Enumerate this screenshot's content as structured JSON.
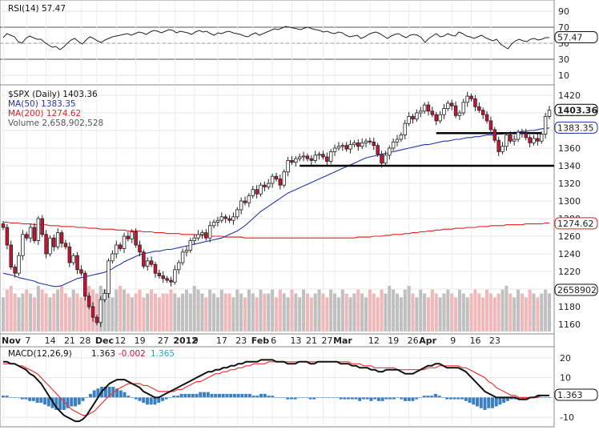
{
  "chart_data": [
    {
      "type": "line",
      "panel": "rsi",
      "legend": "RSI(14) 57.47",
      "last_value_label": "57.47",
      "ylim": [
        0,
        100
      ],
      "y_ticks": [
        10,
        30,
        50,
        70,
        90
      ],
      "guide_levels": [
        30,
        70
      ],
      "values": [
        57,
        62,
        60,
        58,
        52,
        50,
        56,
        59,
        57,
        55,
        55,
        51,
        48,
        45,
        46,
        42,
        45,
        50,
        54,
        56,
        52,
        49,
        54,
        58,
        56,
        53,
        51,
        54,
        56,
        58,
        59,
        60,
        61,
        62,
        60,
        62,
        64,
        63,
        61,
        64,
        66,
        65,
        63,
        65,
        67,
        66,
        63,
        65,
        64,
        63,
        61,
        64,
        66,
        64,
        65,
        62,
        60,
        63,
        62,
        64,
        65,
        63,
        62,
        61,
        59,
        58,
        61,
        63,
        60,
        62,
        64,
        66,
        68,
        67,
        69,
        71,
        70,
        69,
        68,
        67,
        69,
        70,
        68,
        67,
        66,
        64,
        65,
        63,
        62,
        64,
        63,
        60,
        58,
        59,
        60,
        56,
        58,
        61,
        63,
        64,
        62,
        59,
        56,
        59,
        61,
        62,
        59,
        57,
        60,
        61,
        60,
        57,
        51,
        56,
        59,
        62,
        58,
        59,
        62,
        60,
        59,
        64,
        62,
        59,
        58,
        56,
        58,
        60,
        57,
        55,
        53,
        55,
        49,
        46,
        43,
        49,
        53,
        55,
        53,
        52,
        55,
        56,
        54,
        55,
        57,
        57
      ]
    },
    {
      "type": "candlestick",
      "panel": "price",
      "legend": [
        "$SPX (Daily) 1403.36",
        "MA(50) 1383.35",
        "MA(200) 1274.62",
        "Volume 2,658,902,528"
      ],
      "last_value_labels": [
        "1403.36",
        "1383.35",
        "1274.62",
        "2658902"
      ],
      "ylim": [
        1150,
        1430
      ],
      "y_ticks": [
        1160,
        1180,
        1200,
        1220,
        1240,
        1260,
        1280,
        1300,
        1320,
        1340,
        1360,
        1380,
        1400,
        1420
      ],
      "x_tick_labels": [
        "Nov",
        "7",
        "14",
        "21",
        "28",
        "Dec",
        "12",
        "19",
        "27",
        "2012",
        "9",
        "17",
        "23",
        "Feb",
        "6",
        "13",
        "21",
        "27",
        "Mar",
        "12",
        "19",
        "26",
        "Apr",
        "9",
        "16",
        "23"
      ],
      "colors": {
        "up": "#ffffff",
        "down": "#cc1133",
        "ma50": "#2233aa",
        "ma200": "#dd2222",
        "volume_up": "#c0c0c0",
        "volume_down": "#f0b8b8"
      },
      "horizontal_levels": [
        1340,
        1377
      ],
      "close": [
        1270,
        1250,
        1225,
        1218,
        1238,
        1262,
        1258,
        1270,
        1255,
        1280,
        1262,
        1240,
        1258,
        1248,
        1264,
        1252,
        1248,
        1230,
        1238,
        1222,
        1218,
        1192,
        1180,
        1168,
        1162,
        1188,
        1195,
        1232,
        1240,
        1250,
        1246,
        1260,
        1257,
        1265,
        1250,
        1242,
        1226,
        1232,
        1228,
        1218,
        1215,
        1212,
        1210,
        1208,
        1222,
        1230,
        1242,
        1244,
        1255,
        1258,
        1262,
        1264,
        1258,
        1272,
        1276,
        1278,
        1282,
        1280,
        1278,
        1282,
        1290,
        1300,
        1298,
        1306,
        1313,
        1308,
        1318,
        1316,
        1320,
        1328,
        1325,
        1318,
        1333,
        1346,
        1344,
        1348,
        1350,
        1351,
        1348,
        1346,
        1352,
        1353,
        1350,
        1345,
        1356,
        1360,
        1362,
        1363,
        1359,
        1364,
        1366,
        1362,
        1366,
        1368,
        1367,
        1363,
        1353,
        1343,
        1352,
        1360,
        1367,
        1370,
        1375,
        1388,
        1396,
        1393,
        1400,
        1402,
        1409,
        1402,
        1398,
        1391,
        1398,
        1405,
        1411,
        1408,
        1397,
        1400,
        1412,
        1419,
        1416,
        1407,
        1403,
        1398,
        1391,
        1381,
        1369,
        1356,
        1362,
        1375,
        1368,
        1370,
        1378,
        1377,
        1372,
        1366,
        1371,
        1368,
        1376,
        1396,
        1403
      ],
      "ma50": [
        1218,
        1217,
        1216,
        1215,
        1213,
        1212,
        1211,
        1210,
        1209,
        1207,
        1206,
        1205,
        1204,
        1203,
        1203,
        1204,
        1206,
        1208,
        1210,
        1212,
        1213,
        1214,
        1215,
        1216,
        1217,
        1218,
        1219,
        1221,
        1223,
        1226,
        1228,
        1231,
        1233,
        1235,
        1237,
        1239,
        1240,
        1241,
        1242,
        1243,
        1243,
        1244,
        1245,
        1245,
        1246,
        1247,
        1248,
        1249,
        1250,
        1251,
        1252,
        1253,
        1254,
        1255,
        1256,
        1257,
        1258,
        1260,
        1262,
        1264,
        1266,
        1269,
        1272,
        1276,
        1280,
        1284,
        1288,
        1291,
        1294,
        1297,
        1300,
        1303,
        1306,
        1309,
        1311,
        1313,
        1315,
        1317,
        1319,
        1321,
        1323,
        1325,
        1327,
        1329,
        1331,
        1333,
        1335,
        1337,
        1339,
        1341,
        1343,
        1345,
        1347,
        1349,
        1350,
        1351,
        1352,
        1353,
        1354,
        1355,
        1356,
        1357,
        1358,
        1359,
        1360,
        1361,
        1362,
        1363,
        1364,
        1364,
        1365,
        1366,
        1367,
        1368,
        1368,
        1369,
        1370,
        1370,
        1371,
        1372,
        1372,
        1373,
        1373,
        1374,
        1375,
        1375,
        1375,
        1376,
        1376,
        1377,
        1377,
        1378,
        1378,
        1379,
        1379,
        1380,
        1380,
        1381,
        1382,
        1382,
        1383
      ],
      "ma200": [
        1276,
        1276,
        1275,
        1275,
        1275,
        1274,
        1274,
        1274,
        1273,
        1273,
        1273,
        1273,
        1272,
        1272,
        1272,
        1271,
        1271,
        1271,
        1271,
        1270,
        1270,
        1270,
        1269,
        1269,
        1269,
        1268,
        1268,
        1268,
        1268,
        1267,
        1267,
        1267,
        1266,
        1266,
        1266,
        1266,
        1265,
        1265,
        1265,
        1264,
        1264,
        1264,
        1263,
        1263,
        1263,
        1263,
        1262,
        1262,
        1262,
        1262,
        1261,
        1261,
        1261,
        1260,
        1260,
        1260,
        1260,
        1259,
        1259,
        1259,
        1259,
        1259,
        1258,
        1258,
        1258,
        1258,
        1258,
        1258,
        1258,
        1258,
        1258,
        1258,
        1258,
        1258,
        1258,
        1258,
        1258,
        1258,
        1258,
        1258,
        1258,
        1258,
        1258,
        1258,
        1258,
        1258,
        1258,
        1258,
        1258,
        1258,
        1258,
        1259,
        1259,
        1259,
        1259,
        1260,
        1260,
        1260,
        1261,
        1261,
        1262,
        1262,
        1262,
        1263,
        1263,
        1264,
        1264,
        1265,
        1265,
        1266,
        1266,
        1267,
        1267,
        1268,
        1268,
        1268,
        1269,
        1269,
        1269,
        1270,
        1270,
        1270,
        1271,
        1271,
        1271,
        1272,
        1272,
        1272,
        1272,
        1273,
        1273,
        1273,
        1273,
        1273,
        1274,
        1274,
        1274,
        1274,
        1274,
        1275,
        1275
      ],
      "volume_scale": [
        0.45,
        0.55,
        0.6,
        0.5,
        0.45,
        0.5,
        0.55,
        0.5,
        0.45,
        0.6,
        0.55,
        0.5,
        0.45,
        0.5,
        0.55,
        0.6,
        0.5,
        0.45,
        0.55,
        0.5,
        0.45,
        0.55,
        0.6,
        0.55,
        0.5,
        0.6,
        0.55,
        0.5,
        0.45,
        0.55,
        0.6,
        0.55,
        0.5,
        0.45,
        0.5,
        0.55,
        0.45,
        0.5,
        0.55,
        0.5,
        0.45,
        0.5,
        0.5,
        0.55,
        0.5,
        0.45,
        0.5,
        0.55,
        0.5,
        0.6,
        0.55,
        0.5,
        0.45,
        0.55,
        0.5,
        0.45,
        0.55,
        0.5,
        0.5,
        0.45,
        0.55,
        0.5,
        0.45,
        0.55,
        0.5,
        0.45,
        0.55,
        0.5,
        0.5,
        0.55,
        0.45,
        0.55,
        0.5,
        0.45,
        0.55,
        0.5,
        0.45,
        0.55,
        0.5,
        0.45,
        0.5,
        0.55,
        0.5,
        0.45,
        0.55,
        0.5,
        0.45,
        0.55,
        0.5,
        0.45,
        0.5,
        0.55,
        0.5,
        0.45,
        0.55,
        0.5,
        0.45,
        0.55,
        0.5,
        0.6,
        0.55,
        0.5,
        0.45,
        0.55,
        0.6,
        0.5,
        0.45,
        0.55,
        0.5,
        0.45,
        0.55,
        0.5,
        0.45,
        0.5,
        0.55,
        0.5,
        0.45,
        0.55,
        0.5,
        0.45,
        0.5,
        0.55,
        0.5,
        0.45,
        0.55,
        0.5,
        0.45,
        0.5,
        0.55,
        0.6,
        0.5,
        0.45,
        0.55,
        0.5,
        0.45,
        0.55,
        0.5,
        0.45,
        0.5,
        0.55,
        0.5
      ]
    },
    {
      "type": "line",
      "panel": "macd",
      "legend": "MACD(12,26,9) 1.363, -0.002, 1.365",
      "legend_parts": {
        "name": "MACD(12,26,9)",
        "macd": "1.363",
        "hist": "-0.002",
        "signal": "1.365"
      },
      "last_value_label": "1.363",
      "ylim": [
        -14,
        24
      ],
      "y_ticks": [
        -10,
        0,
        10,
        20
      ],
      "colors": {
        "macd": "#111111",
        "signal": "#ee3333",
        "histogram": "#3a7fc0",
        "signal_text": "#2aa0c0",
        "hist_text": "#cc1133"
      },
      "macd": [
        18,
        18,
        17,
        17,
        16,
        15,
        14,
        12,
        11,
        9,
        7,
        4,
        1,
        -2,
        -5,
        -7,
        -9,
        -10,
        -11,
        -12,
        -12,
        -11,
        -9,
        -6,
        -3,
        0,
        3,
        5,
        7,
        8,
        9,
        9,
        9,
        8,
        7,
        6,
        5,
        3,
        2,
        1,
        0,
        0,
        1,
        2,
        3,
        4,
        5,
        6,
        7,
        8,
        9,
        10,
        11,
        12,
        13,
        13,
        14,
        14,
        15,
        15,
        16,
        16,
        17,
        17,
        18,
        18,
        18,
        18,
        19,
        19,
        19,
        19,
        18,
        18,
        18,
        17,
        17,
        17,
        18,
        18,
        18,
        17,
        17,
        18,
        18,
        18,
        18,
        18,
        18,
        17,
        17,
        17,
        16,
        16,
        15,
        15,
        15,
        14,
        14,
        13,
        13,
        14,
        14,
        14,
        14,
        13,
        12,
        12,
        12,
        13,
        14,
        15,
        16,
        16,
        17,
        17,
        16,
        15,
        15,
        15,
        15,
        14,
        13,
        11,
        9,
        7,
        5,
        3,
        2,
        1,
        0,
        0,
        0,
        0,
        0,
        0,
        -1,
        -1,
        -1,
        0,
        0,
        1,
        1,
        1,
        1
      ],
      "signal": [
        17,
        17,
        17,
        17,
        16,
        16,
        15,
        14,
        13,
        12,
        10,
        8,
        6,
        4,
        2,
        0,
        -2,
        -4,
        -6,
        -7,
        -8,
        -9,
        -9,
        -8,
        -7,
        -5,
        -3,
        -1,
        1,
        2,
        4,
        5,
        6,
        7,
        7,
        7,
        7,
        6,
        6,
        5,
        4,
        3,
        3,
        3,
        3,
        3,
        4,
        4,
        5,
        6,
        7,
        8,
        8,
        9,
        10,
        11,
        12,
        12,
        13,
        13,
        14,
        14,
        15,
        15,
        16,
        16,
        17,
        17,
        17,
        17,
        18,
        18,
        18,
        18,
        18,
        18,
        18,
        18,
        18,
        18,
        18,
        18,
        18,
        18,
        18,
        18,
        18,
        18,
        18,
        18,
        18,
        18,
        17,
        17,
        17,
        16,
        16,
        16,
        15,
        15,
        15,
        15,
        15,
        15,
        14,
        14,
        14,
        14,
        14,
        14,
        14,
        14,
        15,
        15,
        15,
        16,
        16,
        16,
        16,
        16,
        16,
        15,
        15,
        14,
        13,
        12,
        11,
        10,
        8,
        7,
        5,
        4,
        3,
        2,
        1,
        1,
        0,
        0,
        0,
        0,
        0,
        0,
        1,
        1,
        1
      ]
    }
  ]
}
